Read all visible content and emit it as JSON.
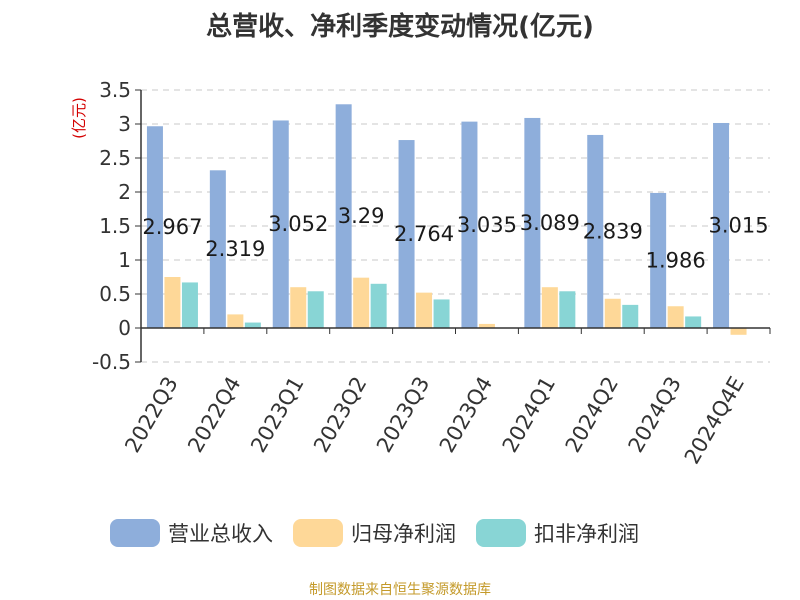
{
  "title": "总营收、净利季度变动情况(亿元)",
  "source": "制图数据来自恒生聚源数据库",
  "chart_data": {
    "type": "bar",
    "unit_label": "(亿元)",
    "categories": [
      "2022Q3",
      "2022Q4",
      "2023Q1",
      "2023Q2",
      "2023Q3",
      "2023Q4",
      "2024Q1",
      "2024Q2",
      "2024Q3",
      "2024Q4E"
    ],
    "series": [
      {
        "name": "营业总收入",
        "color": "#8eaedb",
        "values": [
          2.967,
          2.319,
          3.052,
          3.29,
          2.764,
          3.035,
          3.089,
          2.839,
          1.986,
          3.015
        ],
        "data_labels": [
          "2.967",
          "2.319",
          "3.052",
          "3.29",
          "2.764",
          "3.035",
          "3.089",
          "2.839",
          "1.986",
          "3.015"
        ]
      },
      {
        "name": "归母净利润",
        "color": "#fed898",
        "values": [
          0.75,
          0.2,
          0.6,
          0.74,
          0.52,
          0.06,
          0.6,
          0.43,
          0.32,
          -0.1
        ]
      },
      {
        "name": "扣非净利润",
        "color": "#88d5d5",
        "values": [
          0.67,
          0.08,
          0.54,
          0.65,
          0.42,
          0.0,
          0.54,
          0.34,
          0.17,
          0.0
        ]
      }
    ],
    "yticks": [
      "3.5",
      "3",
      "2.5",
      "2",
      "1.5",
      "1",
      "0.5",
      "0",
      "-0.5"
    ],
    "ylim": [
      -0.5,
      3.5
    ],
    "grid": true,
    "legend_position": "bottom"
  }
}
